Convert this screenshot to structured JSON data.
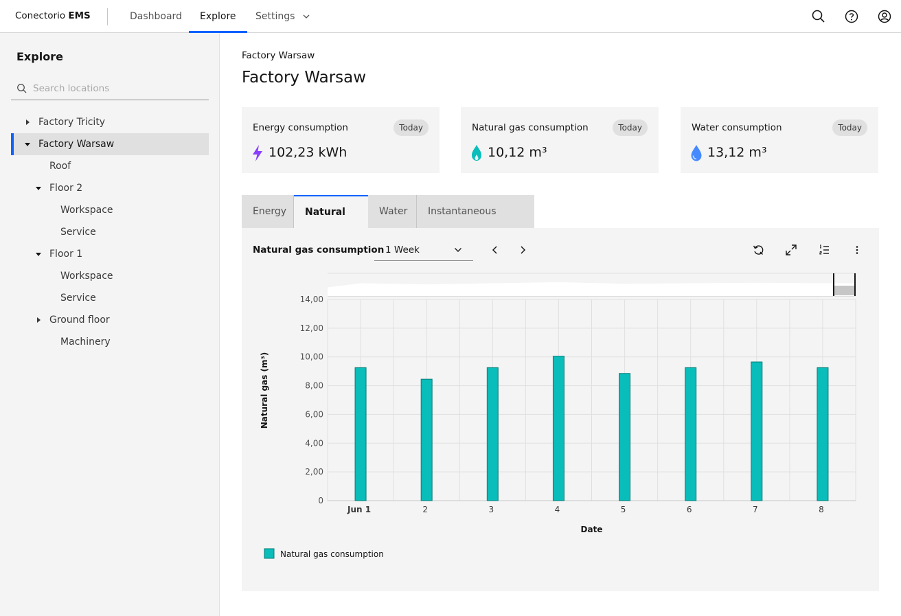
{
  "header": {
    "brand_name": "Conectorio",
    "brand_product": "EMS",
    "nav": [
      {
        "label": "Dashboard"
      },
      {
        "label": "Explore"
      },
      {
        "label": "Settings"
      }
    ]
  },
  "sidebar": {
    "title": "Explore",
    "search_placeholder": "Search locations",
    "tree": [
      {
        "label": "Factory Tricity"
      },
      {
        "label": "Factory Warsaw"
      },
      {
        "label": "Roof"
      },
      {
        "label": "Floor 2"
      },
      {
        "label": "Workspace"
      },
      {
        "label": "Service"
      },
      {
        "label": "Floor 1"
      },
      {
        "label": "Workspace"
      },
      {
        "label": "Service"
      },
      {
        "label": "Ground floor"
      },
      {
        "label": "Machinery"
      }
    ]
  },
  "main": {
    "breadcrumb": "Factory Warsaw",
    "title": "Factory Warsaw",
    "kpis": [
      {
        "label": "Energy consumption",
        "badge": "Today",
        "value": "102,23 kWh",
        "icon": "lightning-icon",
        "color": "#8a3ffc"
      },
      {
        "label": "Natural gas consumption",
        "badge": "Today",
        "value": "10,12 m³",
        "icon": "flame-icon",
        "color": "#08bdba"
      },
      {
        "label": "Water consumption",
        "badge": "Today",
        "value": "13,12 m³",
        "icon": "water-drop-icon",
        "color": "#4589ff"
      }
    ],
    "tabs": [
      {
        "label": "Energy"
      },
      {
        "label": "Natural gas"
      },
      {
        "label": "Water"
      },
      {
        "label": "Instantaneous values"
      }
    ],
    "chart_panel": {
      "title": "Natural gas consumption",
      "range": "1 Week"
    }
  },
  "chart_data": {
    "type": "bar",
    "categories": [
      "Jun 1",
      "2",
      "3",
      "4",
      "5",
      "6",
      "7",
      "8"
    ],
    "series": [
      {
        "name": "Natural gas consumption",
        "values": [
          9.25,
          8.45,
          9.25,
          10.05,
          8.85,
          9.25,
          9.65,
          9.25
        ],
        "color": "#08bdba"
      }
    ],
    "xlabel": "Date",
    "ylabel": "Natural gas (m³)",
    "ylim": [
      0,
      14
    ],
    "yticks": [
      "0",
      "2,00",
      "4,00",
      "6,00",
      "8,00",
      "10,00",
      "12,00",
      "14,00"
    ],
    "grid": true,
    "legend": "bottom-left"
  }
}
